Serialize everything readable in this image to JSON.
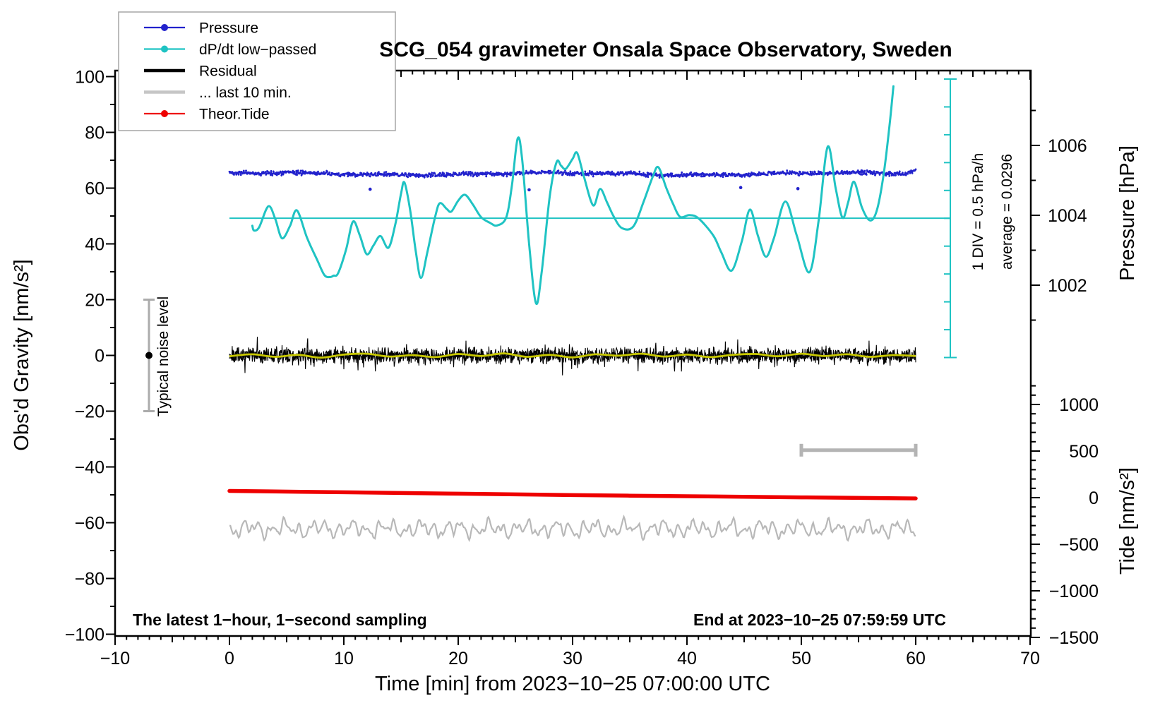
{
  "chart_data": {
    "type": "line",
    "title": "SCG_054 gravimeter Onsala Space Observatory, Sweden",
    "x_axis": {
      "title": "Time [min] from 2023−10−25 07:00:00 UTC",
      "range": [
        -10,
        70
      ],
      "major_tick_step": 10,
      "minor_tick_step": 1,
      "tick_labels": [
        "−10",
        "0",
        "10",
        "20",
        "30",
        "40",
        "50",
        "60",
        "70"
      ],
      "tick_values": [
        -10,
        0,
        10,
        20,
        30,
        40,
        50,
        60,
        70
      ]
    },
    "y_axis_left": {
      "title": "Obs'd Gravity [nm/s²]",
      "range": [
        -100,
        100
      ],
      "major_tick_step": 20,
      "minor_tick_step": 10,
      "tick_labels": [
        "−100",
        "−80",
        "−60",
        "−40",
        "−20",
        "0",
        "20",
        "40",
        "60",
        "80",
        "100"
      ],
      "tick_values": [
        -100,
        -80,
        -60,
        -40,
        -20,
        0,
        20,
        40,
        60,
        80,
        100
      ]
    },
    "y_axis_right_pressure": {
      "title": "Pressure [hPa]",
      "tick_labels": [
        "1002",
        "1004",
        "1006"
      ],
      "tick_values": [
        1002,
        1004,
        1006
      ],
      "minor_tick_values": [
        1001,
        1003,
        1005,
        1007
      ],
      "grid": false
    },
    "y_axis_right_tide": {
      "title": "Tide [nm/s²]",
      "tick_labels": [
        "1000",
        "500",
        "0",
        "−500",
        "−1000",
        "−1500"
      ],
      "tick_values": [
        1000,
        500,
        0,
        -500,
        -1000,
        -1500
      ],
      "minor_tick_step": 100
    },
    "legend": {
      "position": "top-left",
      "items": [
        {
          "label": "Pressure",
          "color": "#2222cc",
          "marker": "dot",
          "line_weight": "thin"
        },
        {
          "label": "dP/dt low−passed",
          "color": "#1fc3c3",
          "marker": "dot",
          "line_weight": "thin"
        },
        {
          "label": "Residual",
          "color": "#000000",
          "marker": "none",
          "line_weight": "thick"
        },
        {
          "label": "... last 10 min.",
          "color": "#c6c6c6",
          "marker": "none",
          "line_weight": "thick"
        },
        {
          "label": "Theor.Tide",
          "color": "#ee0000",
          "marker": "dot",
          "line_weight": "thin"
        }
      ]
    },
    "annotations": {
      "sampling_note": "The latest 1−hour, 1−second sampling",
      "end_note": "End at 2023−10−25 07:59:59 UTC",
      "div_note": "1 DIV = 0.5 hPa/h",
      "average_note": "average = 0.0296",
      "noise_label": "Typical noise level"
    },
    "series": [
      {
        "id": "pressure",
        "legend": "Pressure",
        "color": "#2222cc",
        "style": "dense-dots",
        "axis": "right-pressure",
        "x_range_min": [
          0,
          60
        ],
        "mean_level_hpa": 1005.2,
        "gravity_axis_level": 65.1,
        "noise_amplitude_gravity_units": 1.0,
        "end_tail_rise_units": 1.3,
        "outlier_dots_gravity_units": [
          [
            12.3,
            59.6
          ],
          [
            26.2,
            59.4
          ],
          [
            44.7,
            60.2
          ],
          [
            49.7,
            59.8
          ]
        ]
      },
      {
        "id": "dpdt-lowpassed",
        "legend": "dP/dt low−passed",
        "color": "#1fc3c3",
        "style": "smooth-line",
        "axis": "dpdt-scalebar (1 DIV = 0.5 hPa/h, zero at horizontal line)",
        "keypoints_gravity_units": [
          [
            2.0,
            46.5
          ],
          [
            2.15,
            44.8
          ],
          [
            2.6,
            46.0
          ],
          [
            3.4,
            53.5
          ],
          [
            4.0,
            49.0
          ],
          [
            4.6,
            42.0
          ],
          [
            5.3,
            46.5
          ],
          [
            5.9,
            52.0
          ],
          [
            6.8,
            42.0
          ],
          [
            7.7,
            34.0
          ],
          [
            8.3,
            28.8
          ],
          [
            8.8,
            28.1
          ],
          [
            9.1,
            28.6
          ],
          [
            9.5,
            29.5
          ],
          [
            10.2,
            38.0
          ],
          [
            10.8,
            48.0
          ],
          [
            11.4,
            43.0
          ],
          [
            12.0,
            36.3
          ],
          [
            12.6,
            39.5
          ],
          [
            13.2,
            42.8
          ],
          [
            13.9,
            38.6
          ],
          [
            14.5,
            47.0
          ],
          [
            15.0,
            58.0
          ],
          [
            15.3,
            62.0
          ],
          [
            15.8,
            52.0
          ],
          [
            16.3,
            37.0
          ],
          [
            16.75,
            27.8
          ],
          [
            17.3,
            37.0
          ],
          [
            18.0,
            50.0
          ],
          [
            18.4,
            54.6
          ],
          [
            19.0,
            52.5
          ],
          [
            19.4,
            51.6
          ],
          [
            20.0,
            55.5
          ],
          [
            20.6,
            57.6
          ],
          [
            21.3,
            54.0
          ],
          [
            22.0,
            49.6
          ],
          [
            22.8,
            47.5
          ],
          [
            23.4,
            46.6
          ],
          [
            24.2,
            49.5
          ],
          [
            24.7,
            61.0
          ],
          [
            25.2,
            77.8
          ],
          [
            25.6,
            70.0
          ],
          [
            26.2,
            40.0
          ],
          [
            26.8,
            18.7
          ],
          [
            27.3,
            30.0
          ],
          [
            28.0,
            57.0
          ],
          [
            28.6,
            69.3
          ],
          [
            29.0,
            68.0
          ],
          [
            29.4,
            66.9
          ],
          [
            30.0,
            70.5
          ],
          [
            30.4,
            72.6
          ],
          [
            31.0,
            64.0
          ],
          [
            31.8,
            53.8
          ],
          [
            32.4,
            59.7
          ],
          [
            33.0,
            55.0
          ],
          [
            33.6,
            49.8
          ],
          [
            34.3,
            45.7
          ],
          [
            35.3,
            46.2
          ],
          [
            36.2,
            55.0
          ],
          [
            37.0,
            64.0
          ],
          [
            37.5,
            67.5
          ],
          [
            38.2,
            60.0
          ],
          [
            38.8,
            54.2
          ],
          [
            39.4,
            49.7
          ],
          [
            40.2,
            50.3
          ],
          [
            41.0,
            49.2
          ],
          [
            42.3,
            43.0
          ],
          [
            43.0,
            37.0
          ],
          [
            43.9,
            30.4
          ],
          [
            44.8,
            41.0
          ],
          [
            45.5,
            52.3
          ],
          [
            46.2,
            43.0
          ],
          [
            46.9,
            35.4
          ],
          [
            47.6,
            42.0
          ],
          [
            48.6,
            55.2
          ],
          [
            49.6,
            43.0
          ],
          [
            50.7,
            29.8
          ],
          [
            51.5,
            48.0
          ],
          [
            52.3,
            74.8
          ],
          [
            53.0,
            60.0
          ],
          [
            53.6,
            49.4
          ],
          [
            54.1,
            55.0
          ],
          [
            54.6,
            62.3
          ],
          [
            55.3,
            53.0
          ],
          [
            56.0,
            48.4
          ],
          [
            56.6,
            52.0
          ],
          [
            57.2,
            65.0
          ],
          [
            57.7,
            82.0
          ],
          [
            58.05,
            96.5
          ]
        ],
        "zero_line_gravity_level": 49.2,
        "average_hpa_per_h": 0.0296
      },
      {
        "id": "residual",
        "legend": "Residual",
        "color": "#000000",
        "style": "noisy-line",
        "axis": "left",
        "x_range_min": [
          0,
          60
        ],
        "mean_gravity_units": 0,
        "typical_band_units": 2.5,
        "spike_units": 9
      },
      {
        "id": "residual-smoothed",
        "legend": null,
        "color": "#c8c800",
        "style": "smooth-line-overlay",
        "axis": "left",
        "keypoints_gravity_units": [
          [
            0,
            -0.3
          ],
          [
            2,
            0.4
          ],
          [
            4,
            -0.5
          ],
          [
            6,
            0.2
          ],
          [
            8,
            -0.8
          ],
          [
            10,
            0.3
          ],
          [
            12,
            0.6
          ],
          [
            14,
            -0.4
          ],
          [
            16,
            0.1
          ],
          [
            18,
            -0.6
          ],
          [
            20,
            0.5
          ],
          [
            22,
            -0.2
          ],
          [
            24,
            0.7
          ],
          [
            26,
            -0.5
          ],
          [
            28,
            0.2
          ],
          [
            30,
            -0.7
          ],
          [
            32,
            0.4
          ],
          [
            34,
            -0.1
          ],
          [
            36,
            0.6
          ],
          [
            38,
            -0.4
          ],
          [
            40,
            0.3
          ],
          [
            42,
            -0.6
          ],
          [
            44,
            0.2
          ],
          [
            46,
            0.5
          ],
          [
            48,
            -0.3
          ],
          [
            50,
            0.6
          ],
          [
            52,
            -0.2
          ],
          [
            54,
            0.4
          ],
          [
            56,
            -0.5
          ],
          [
            58,
            0.1
          ],
          [
            60,
            -0.2
          ]
        ]
      },
      {
        "id": "residual-last-10-min",
        "legend": "... last 10 min.",
        "color": "#b8b8b8",
        "style": "wiggly-line",
        "axis": "left (offset display)",
        "x_range_min": [
          0,
          60
        ],
        "display_offset_gravity_units": -62.2,
        "amplitude_gravity_units": 3.0
      },
      {
        "id": "theoretical-tide",
        "legend": "Theor.Tide",
        "color": "#ee0000",
        "style": "thick-line",
        "axis": "right-tide",
        "keypoints_gravity_units": [
          [
            0,
            -48.6
          ],
          [
            10,
            -49.1
          ],
          [
            20,
            -49.6
          ],
          [
            30,
            -50.1
          ],
          [
            40,
            -50.5
          ],
          [
            50,
            -50.9
          ],
          [
            60,
            -51.3
          ]
        ],
        "tide_axis_values_nm_s2": [
          [
            0,
            72
          ],
          [
            60,
            -8
          ]
        ]
      }
    ],
    "markers": {
      "noise_error_bar": {
        "x_min": -7,
        "gravity_range": [
          -20,
          20
        ],
        "dot_at": 0,
        "color": "#ababab"
      },
      "last10_bracket": {
        "x_min_range": [
          50,
          60
        ],
        "gravity_level": -34,
        "color": "#b4b4b4"
      },
      "dpdt_scalebar": {
        "x_min": 63,
        "divisions": 10,
        "div_value": "0.5 hPa/h",
        "color": "#1fc3c3"
      }
    }
  }
}
